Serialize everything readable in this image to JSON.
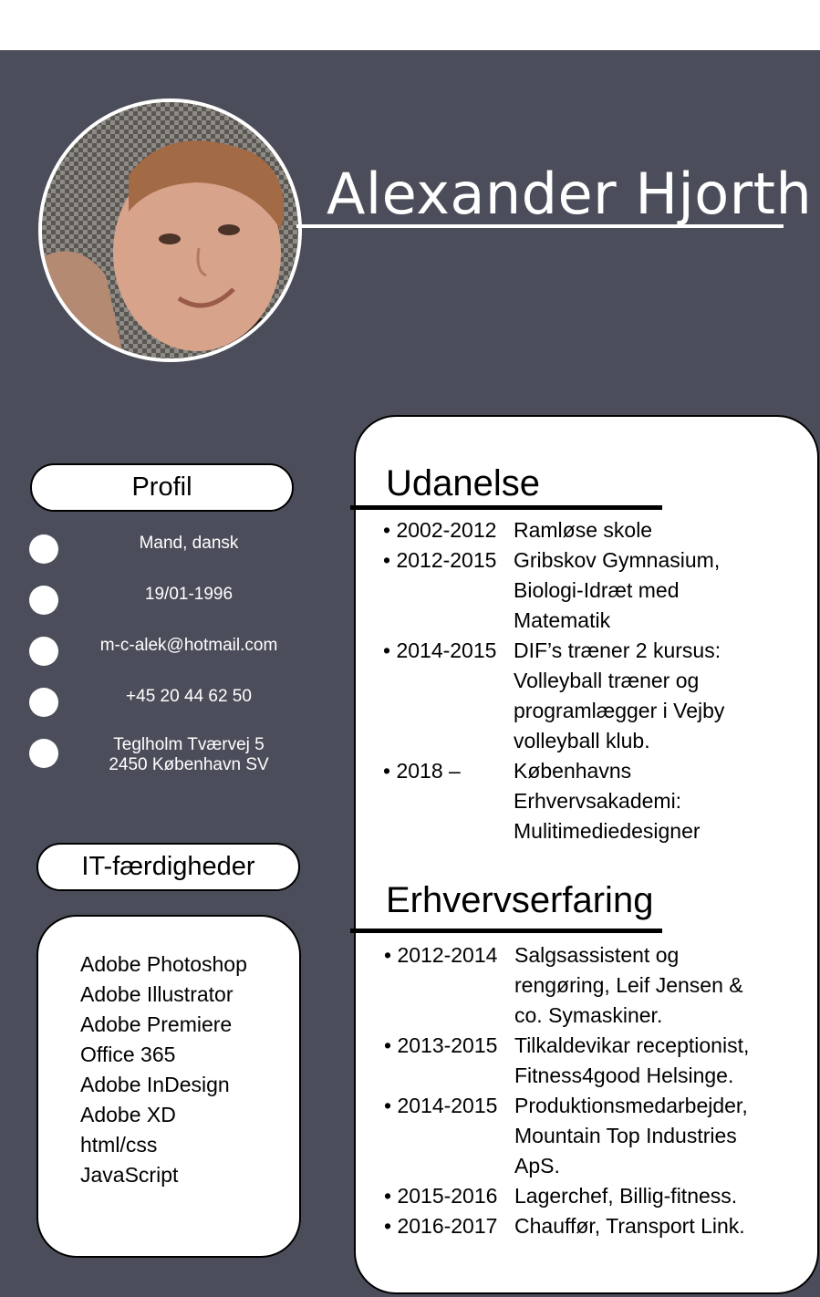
{
  "name": "Alexander Hjorth",
  "profile": {
    "heading": "Profil",
    "items": [
      {
        "icon": "bullet-circle",
        "text": "Mand, dansk"
      },
      {
        "icon": "bullet-circle",
        "text": "19/01-1996"
      },
      {
        "icon": "bullet-circle",
        "text": "m-c-alek@hotmail.com"
      },
      {
        "icon": "bullet-circle",
        "text": "+45 20 44 62 50"
      },
      {
        "icon": "bullet-circle",
        "text": "Teglholm Tværvej 5\n2450 København SV"
      }
    ]
  },
  "it": {
    "heading": "IT-færdigheder",
    "skills": [
      "Adobe Photoshop",
      "Adobe Illustrator",
      "Adobe Premiere",
      "Office 365",
      "Adobe InDesign",
      "Adobe XD",
      "html/css",
      "JavaScript"
    ]
  },
  "education": {
    "heading": "Udanelse",
    "entries": [
      {
        "year": "• 2002-2012",
        "desc": "Ramløse skole"
      },
      {
        "year": "• 2012-2015",
        "desc": "Gribskov Gymnasium,\nBiologi-Idræt med\nMatematik"
      },
      {
        "year": "• 2014-2015",
        "desc": "DIF’s træner 2 kursus:\nVolleyball træner og\nprogramlægger i Vejby\nvolleyball klub."
      },
      {
        "year": "• 2018 –",
        "desc": "Københavns\nErhvervsakademi:\nMulitimediedesigner"
      }
    ]
  },
  "experience": {
    "heading": "Erhvervserfaring",
    "entries": [
      {
        "year": "• 2012-2014",
        "desc": "Salgsassistent og\nrengøring, Leif Jensen &\nco. Symaskiner."
      },
      {
        "year": "• 2013-2015",
        "desc": "Tilkaldevikar receptionist,\nFitness4good Helsinge."
      },
      {
        "year": "• 2014-2015",
        "desc": "Produktionsmedarbejder,\nMountain Top Industries\nApS."
      },
      {
        "year": "• 2015-2016",
        "desc": "Lagerchef, Billig-fitness."
      },
      {
        "year": "• 2016-2017",
        "desc": "Chauffør, Transport Link."
      }
    ]
  },
  "colors": {
    "panel": "#4b4e5a",
    "card": "#ffffff",
    "text_on_panel": "#ffffff"
  }
}
